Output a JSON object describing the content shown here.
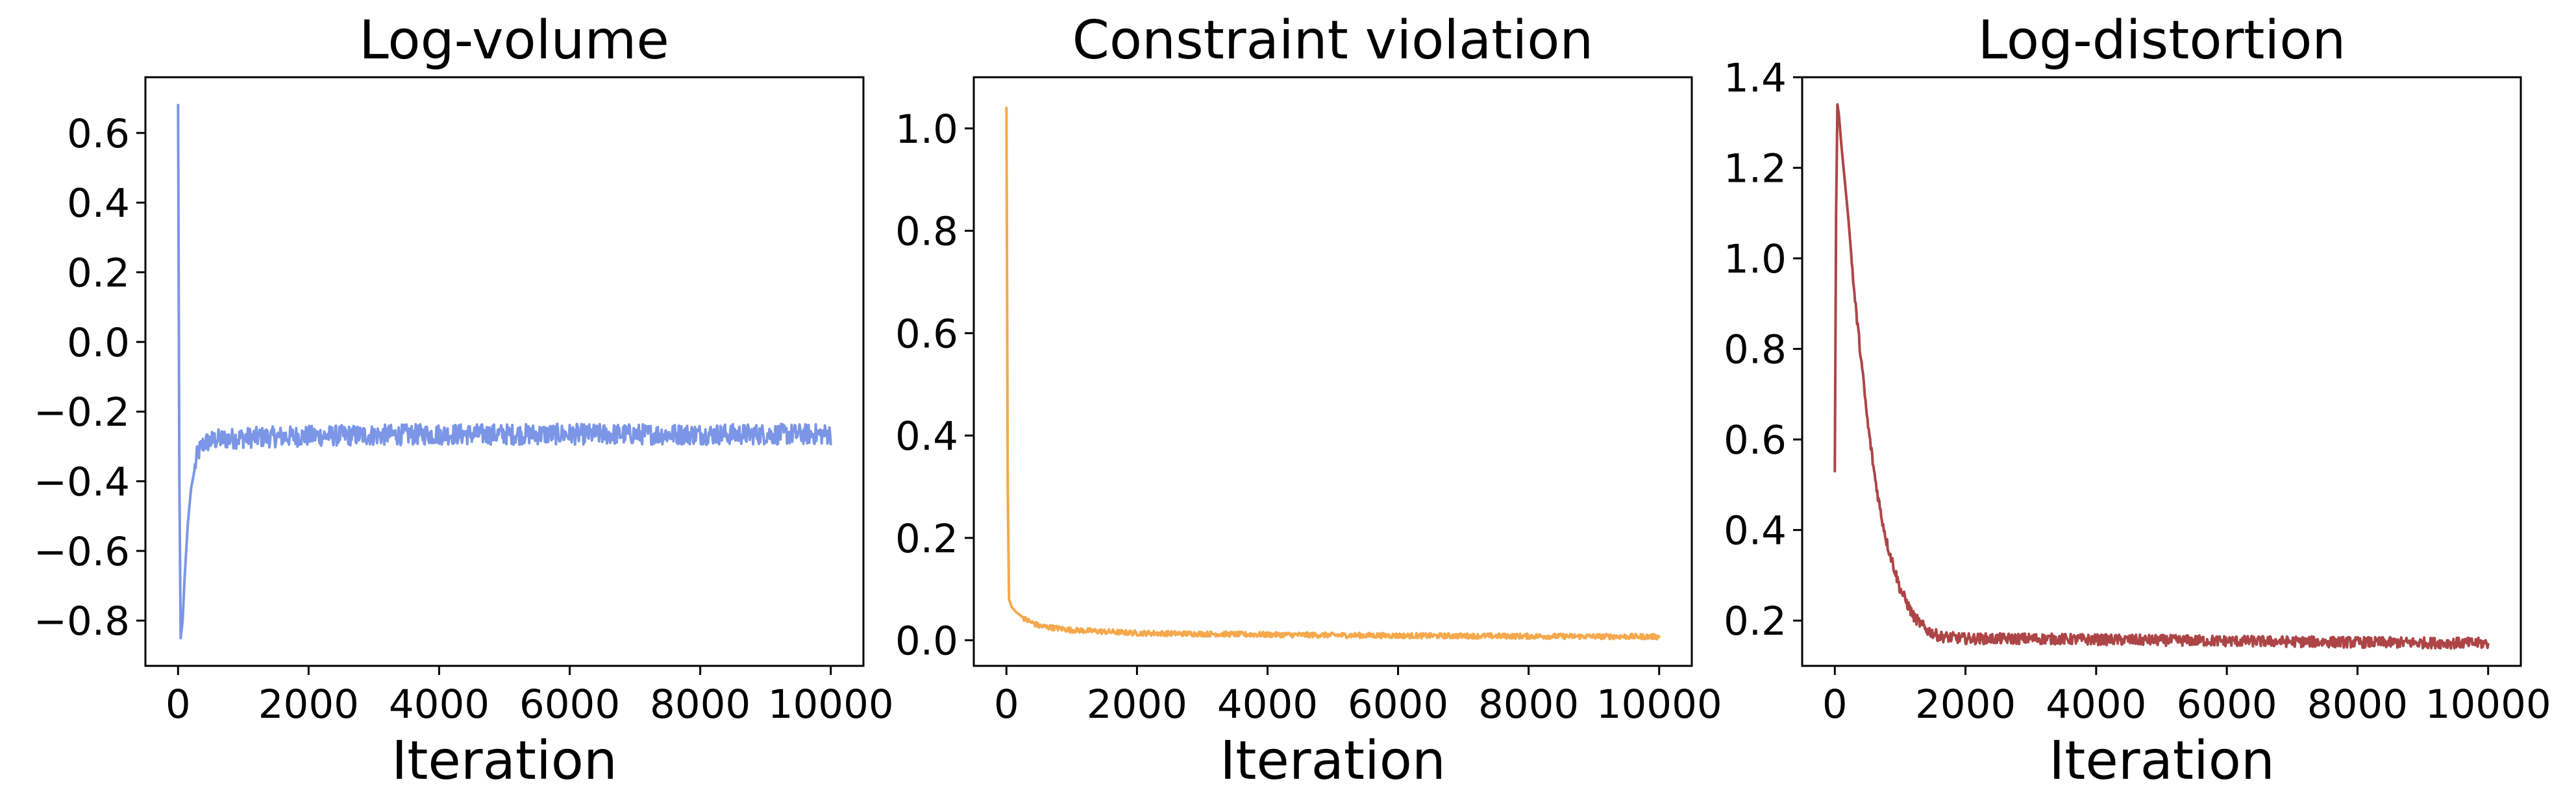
{
  "chart_data": [
    {
      "type": "line",
      "title": "Log-volume",
      "xlabel": "Iteration",
      "ylabel": "",
      "xlim": [
        -500,
        10500
      ],
      "ylim": [
        -0.93,
        0.76
      ],
      "xticks": [
        0,
        2000,
        4000,
        6000,
        8000,
        10000
      ],
      "xtick_labels": [
        "0",
        "2000",
        "4000",
        "6000",
        "8000",
        "10000"
      ],
      "yticks": [
        -0.8,
        -0.6,
        -0.4,
        -0.2,
        0.0,
        0.2,
        0.4,
        0.6
      ],
      "ytick_labels": [
        "−0.8",
        "−0.6",
        "−0.4",
        "−0.2",
        "0.0",
        "0.2",
        "0.4",
        "0.6"
      ],
      "grid": false,
      "color": "#7b96e6",
      "series": [
        {
          "x": [
            0,
            20,
            40,
            70,
            100,
            150,
            200,
            300,
            400,
            600,
            1000,
            2000,
            4000,
            6000,
            8000,
            10000
          ],
          "y": [
            0.68,
            -0.4,
            -0.85,
            -0.8,
            -0.68,
            -0.52,
            -0.42,
            -0.32,
            -0.29,
            -0.28,
            -0.275,
            -0.27,
            -0.265,
            -0.265,
            -0.265,
            -0.265
          ],
          "noise_band": 0.03
        }
      ]
    },
    {
      "type": "line",
      "title": "Constraint violation",
      "xlabel": "Iteration",
      "ylabel": "",
      "xlim": [
        -500,
        10500
      ],
      "ylim": [
        -0.05,
        1.1
      ],
      "xticks": [
        0,
        2000,
        4000,
        6000,
        8000,
        10000
      ],
      "xtick_labels": [
        "0",
        "2000",
        "4000",
        "6000",
        "8000",
        "10000"
      ],
      "yticks": [
        0.0,
        0.2,
        0.4,
        0.6,
        0.8,
        1.0
      ],
      "ytick_labels": [
        "0.0",
        "0.2",
        "0.4",
        "0.6",
        "0.8",
        "1.0"
      ],
      "grid": false,
      "color": "#f5a84c",
      "series": [
        {
          "x": [
            0,
            20,
            40,
            80,
            150,
            300,
            500,
            1000,
            2000,
            4000,
            6000,
            8000,
            10000
          ],
          "y": [
            1.04,
            0.3,
            0.08,
            0.065,
            0.055,
            0.04,
            0.028,
            0.02,
            0.014,
            0.011,
            0.009,
            0.008,
            0.007
          ],
          "noise_band": 0.005
        }
      ]
    },
    {
      "type": "line",
      "title": "Log-distortion",
      "xlabel": "Iteration",
      "ylabel": "",
      "xlim": [
        -500,
        10500
      ],
      "ylim": [
        0.1,
        1.4
      ],
      "xticks": [
        0,
        2000,
        4000,
        6000,
        8000,
        10000
      ],
      "xtick_labels": [
        "0",
        "2000",
        "4000",
        "6000",
        "8000",
        "10000"
      ],
      "yticks": [
        0.2,
        0.4,
        0.6,
        0.8,
        1.0,
        1.2,
        1.4
      ],
      "ytick_labels": [
        "0.2",
        "0.4",
        "0.6",
        "0.8",
        "1.0",
        "1.2",
        "1.4"
      ],
      "grid": false,
      "color": "#ad4547",
      "series": [
        {
          "x": [
            0,
            20,
            40,
            60,
            100,
            200,
            300,
            400,
            500,
            600,
            700,
            800,
            900,
            1000,
            1200,
            1400,
            1600,
            2000,
            3000,
            4000,
            6000,
            8000,
            10000
          ],
          "y": [
            0.53,
            1.1,
            1.34,
            1.32,
            1.25,
            1.1,
            0.92,
            0.78,
            0.64,
            0.53,
            0.44,
            0.37,
            0.32,
            0.27,
            0.21,
            0.18,
            0.165,
            0.16,
            0.16,
            0.158,
            0.155,
            0.152,
            0.15
          ],
          "noise_band": 0.012
        }
      ]
    }
  ]
}
